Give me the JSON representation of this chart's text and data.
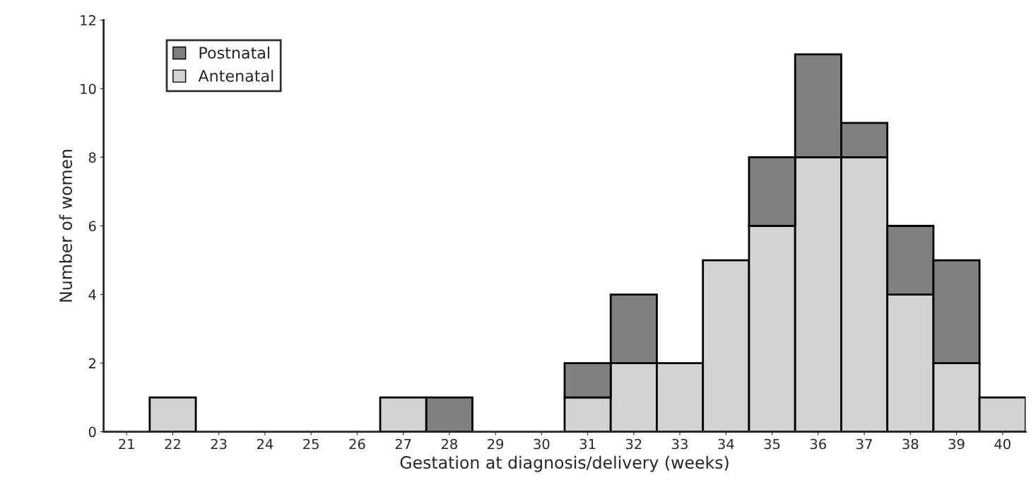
{
  "chart_data": {
    "type": "bar",
    "stacked": true,
    "xlabel": "Gestation at diagnosis/delivery (weeks)",
    "ylabel": "Number of women",
    "categories": [
      "21",
      "22",
      "23",
      "24",
      "25",
      "26",
      "27",
      "28",
      "29",
      "30",
      "31",
      "32",
      "33",
      "34",
      "35",
      "36",
      "37",
      "38",
      "39",
      "40"
    ],
    "series": [
      {
        "name": "Antenatal",
        "color": "#d3d3d3",
        "values": [
          0,
          1,
          0,
          0,
          0,
          0,
          1,
          0,
          0,
          0,
          1,
          2,
          2,
          5,
          6,
          8,
          8,
          4,
          2,
          1
        ]
      },
      {
        "name": "Postnatal",
        "color": "#808080",
        "values": [
          0,
          0,
          0,
          0,
          0,
          0,
          0,
          1,
          0,
          0,
          1,
          2,
          0,
          0,
          2,
          3,
          1,
          2,
          3,
          0
        ]
      }
    ],
    "ylim": [
      0,
      12
    ],
    "yticks": [
      0,
      2,
      4,
      6,
      8,
      10,
      12
    ],
    "grid": false,
    "legend": "top left"
  }
}
